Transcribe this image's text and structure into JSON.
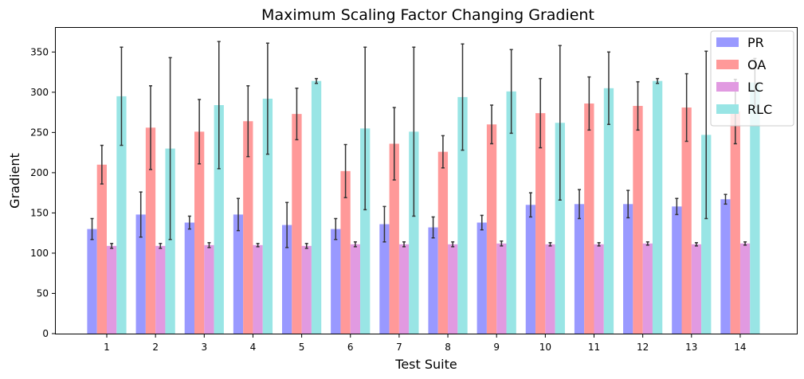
{
  "chart_data": {
    "type": "bar",
    "title": "Maximum Scaling Factor Changing Gradient",
    "xlabel": "Test Suite",
    "ylabel": "Gradient",
    "ylim": [
      0,
      380
    ],
    "yticks": [
      0,
      50,
      100,
      150,
      200,
      250,
      300,
      350
    ],
    "categories": [
      "1",
      "2",
      "3",
      "4",
      "5",
      "6",
      "7",
      "8",
      "9",
      "10",
      "11",
      "12",
      "13",
      "14"
    ],
    "legend_position": "top-right",
    "grid": false,
    "error_bars": true,
    "series": [
      {
        "name": "PR",
        "color": "#9999ff",
        "values": [
          130,
          148,
          138,
          148,
          135,
          130,
          136,
          132,
          138,
          160,
          161,
          161,
          158,
          167
        ],
        "errors": [
          13,
          28,
          8,
          20,
          28,
          13,
          22,
          13,
          9,
          15,
          18,
          17,
          10,
          6
        ]
      },
      {
        "name": "OA",
        "color": "#ff9999",
        "values": [
          210,
          256,
          251,
          264,
          273,
          202,
          236,
          226,
          260,
          274,
          286,
          283,
          281,
          276
        ],
        "errors": [
          24,
          52,
          40,
          44,
          32,
          33,
          45,
          20,
          24,
          43,
          33,
          30,
          42,
          40
        ]
      },
      {
        "name": "LC",
        "color": "#e19ae1",
        "values": [
          109,
          109,
          110,
          110,
          109,
          111,
          111,
          111,
          112,
          111,
          111,
          112,
          111,
          112
        ],
        "errors": [
          3,
          3,
          3,
          2,
          3,
          3,
          3,
          3,
          3,
          2,
          2,
          2,
          2,
          2
        ]
      },
      {
        "name": "RLC",
        "color": "#99e5e5",
        "values": [
          295,
          230,
          284,
          292,
          314,
          255,
          251,
          294,
          301,
          262,
          305,
          314,
          247,
          312
        ],
        "errors": [
          61,
          113,
          79,
          69,
          3,
          101,
          105,
          66,
          52,
          96,
          45,
          3,
          104,
          30
        ]
      }
    ]
  }
}
